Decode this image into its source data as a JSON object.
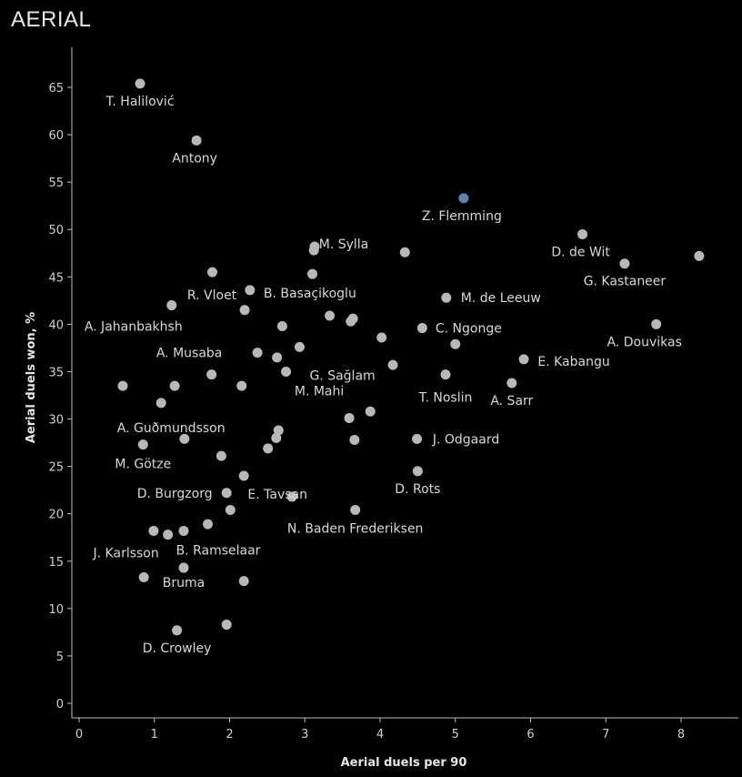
{
  "title": "AERIAL",
  "colors": {
    "background": "#000000",
    "point": "#b8b8b8",
    "highlight": "#5b84b1",
    "axis": "#bdbdbd",
    "text": "#d8d8d8"
  },
  "chart_data": {
    "type": "scatter",
    "xlabel": "Aerial duels per 90",
    "ylabel": "Aerial duels won, %",
    "xlim": [
      0,
      8.75
    ],
    "ylim": [
      0,
      68
    ],
    "xticks": [
      0,
      1,
      2,
      3,
      4,
      5,
      6,
      7,
      8
    ],
    "yticks": [
      0,
      5,
      10,
      15,
      20,
      25,
      30,
      35,
      40,
      45,
      50,
      55,
      60,
      65
    ],
    "grid": false,
    "highlight": "Z. Flemming",
    "points": [
      {
        "x": 0.81,
        "y": 65.4,
        "label": "T. Halilović"
      },
      {
        "x": 1.56,
        "y": 59.4,
        "label": "Antony"
      },
      {
        "x": 5.11,
        "y": 53.3,
        "label": "Z. Flemming"
      },
      {
        "x": 6.69,
        "y": 49.5,
        "label": "D. de Wit"
      },
      {
        "x": 7.25,
        "y": 46.4,
        "label": "G. Kastaneer"
      },
      {
        "x": 8.24,
        "y": 47.2,
        "label": ""
      },
      {
        "x": 3.13,
        "y": 48.2,
        "label": "M. Sylla"
      },
      {
        "x": 3.12,
        "y": 47.8,
        "label": ""
      },
      {
        "x": 4.33,
        "y": 47.6,
        "label": ""
      },
      {
        "x": 1.77,
        "y": 45.5,
        "label": ""
      },
      {
        "x": 3.1,
        "y": 45.3,
        "label": ""
      },
      {
        "x": 2.27,
        "y": 43.6,
        "label": "B. Basaçikoglu"
      },
      {
        "x": 2.2,
        "y": 41.5,
        "label": "R. Vloet"
      },
      {
        "x": 4.88,
        "y": 42.8,
        "label": "M. de Leeuw"
      },
      {
        "x": 1.23,
        "y": 42.0,
        "label": "A. Jahanbakhsh"
      },
      {
        "x": 3.33,
        "y": 40.9,
        "label": ""
      },
      {
        "x": 3.64,
        "y": 40.6,
        "label": ""
      },
      {
        "x": 3.61,
        "y": 40.3,
        "label": ""
      },
      {
        "x": 2.7,
        "y": 39.8,
        "label": ""
      },
      {
        "x": 4.56,
        "y": 39.6,
        "label": "C. Ngonge"
      },
      {
        "x": 7.67,
        "y": 40.0,
        "label": "A. Douvikas"
      },
      {
        "x": 4.02,
        "y": 38.6,
        "label": ""
      },
      {
        "x": 5.0,
        "y": 37.9,
        "label": ""
      },
      {
        "x": 2.93,
        "y": 37.6,
        "label": ""
      },
      {
        "x": 2.37,
        "y": 37.0,
        "label": "A. Musaba"
      },
      {
        "x": 2.63,
        "y": 36.5,
        "label": ""
      },
      {
        "x": 5.91,
        "y": 36.3,
        "label": "E. Kabangu"
      },
      {
        "x": 4.17,
        "y": 35.7,
        "label": ""
      },
      {
        "x": 2.75,
        "y": 35.0,
        "label": "G. Sağlam"
      },
      {
        "x": 1.76,
        "y": 34.7,
        "label": ""
      },
      {
        "x": 4.87,
        "y": 34.7,
        "label": "T. Noslin"
      },
      {
        "x": 5.75,
        "y": 33.8,
        "label": "A. Sarr"
      },
      {
        "x": 0.58,
        "y": 33.5,
        "label": ""
      },
      {
        "x": 1.27,
        "y": 33.5,
        "label": ""
      },
      {
        "x": 2.16,
        "y": 33.5,
        "label": ""
      },
      {
        "x": 1.09,
        "y": 31.7,
        "label": "A. Guðmundsson"
      },
      {
        "x": 3.87,
        "y": 30.8,
        "label": ""
      },
      {
        "x": 3.59,
        "y": 30.1,
        "label": "M. Mahi"
      },
      {
        "x": 2.65,
        "y": 28.8,
        "label": ""
      },
      {
        "x": 2.62,
        "y": 28.0,
        "label": ""
      },
      {
        "x": 1.4,
        "y": 27.9,
        "label": ""
      },
      {
        "x": 3.66,
        "y": 27.8,
        "label": ""
      },
      {
        "x": 4.49,
        "y": 27.9,
        "label": "J. Odgaard"
      },
      {
        "x": 0.85,
        "y": 27.3,
        "label": "M. Götze"
      },
      {
        "x": 2.51,
        "y": 26.9,
        "label": ""
      },
      {
        "x": 1.89,
        "y": 26.1,
        "label": ""
      },
      {
        "x": 2.19,
        "y": 24.0,
        "label": "E. Tavsan"
      },
      {
        "x": 4.5,
        "y": 24.5,
        "label": "D. Rots"
      },
      {
        "x": 1.96,
        "y": 22.2,
        "label": "D. Burgzorg"
      },
      {
        "x": 2.83,
        "y": 21.8,
        "label": ""
      },
      {
        "x": 2.01,
        "y": 20.4,
        "label": ""
      },
      {
        "x": 3.67,
        "y": 20.4,
        "label": "N. Baden Frederiksen"
      },
      {
        "x": 1.71,
        "y": 18.9,
        "label": ""
      },
      {
        "x": 0.99,
        "y": 18.2,
        "label": ""
      },
      {
        "x": 1.18,
        "y": 17.8,
        "label": "J. Karlsson"
      },
      {
        "x": 1.39,
        "y": 18.2,
        "label": "B. Ramselaar"
      },
      {
        "x": 0.86,
        "y": 13.3,
        "label": ""
      },
      {
        "x": 1.39,
        "y": 14.3,
        "label": "Bruma"
      },
      {
        "x": 2.19,
        "y": 12.9,
        "label": ""
      },
      {
        "x": 1.3,
        "y": 7.7,
        "label": "D. Crowley"
      },
      {
        "x": 1.96,
        "y": 8.3,
        "label": ""
      }
    ]
  }
}
